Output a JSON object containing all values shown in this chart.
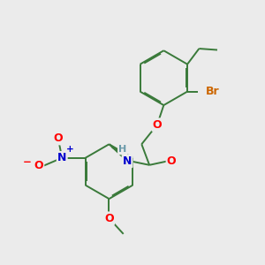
{
  "background_color": "#ebebeb",
  "bond_color": "#3a7a3a",
  "bond_width": 1.4,
  "dbo": 0.045,
  "atom_colors": {
    "O": "#ff0000",
    "N": "#0000cd",
    "Br": "#cc6600",
    "H": "#6a9aaa"
  },
  "font_size": 8.5,
  "figsize": [
    3.0,
    3.0
  ],
  "dpi": 100,
  "xlim": [
    0,
    10
  ],
  "ylim": [
    0,
    10
  ]
}
